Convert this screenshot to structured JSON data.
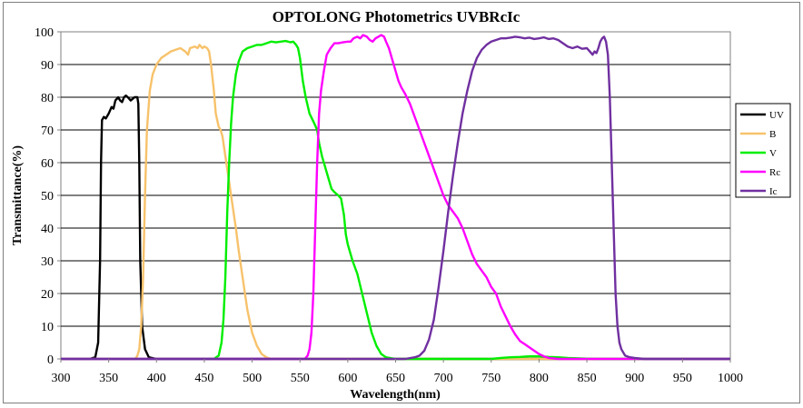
{
  "chart_data": {
    "type": "line",
    "title": "OPTOLONG Photometrics UVBRcIc",
    "xlabel": "Wavelength(nm)",
    "ylabel": "Transmittance(%)",
    "xlim": [
      300,
      1000
    ],
    "ylim": [
      0,
      100
    ],
    "xticks": [
      "300",
      "350",
      "400",
      "450",
      "500",
      "550",
      "600",
      "650",
      "700",
      "750",
      "800",
      "850",
      "900",
      "950",
      "1000"
    ],
    "yticks": [
      "0",
      "10",
      "20",
      "30",
      "40",
      "50",
      "60",
      "70",
      "80",
      "90",
      "100"
    ],
    "grid": "horizontal",
    "legend_position": "right",
    "series": [
      {
        "name": "UV",
        "color": "#000000",
        "points": [
          [
            300,
            0
          ],
          [
            330,
            0
          ],
          [
            336,
            0.5
          ],
          [
            339,
            5
          ],
          [
            341,
            30
          ],
          [
            342,
            60
          ],
          [
            343,
            73
          ],
          [
            345,
            74
          ],
          [
            347,
            73.5
          ],
          [
            350,
            75
          ],
          [
            353,
            77
          ],
          [
            355,
            76.5
          ],
          [
            357,
            79
          ],
          [
            360,
            80
          ],
          [
            362,
            79
          ],
          [
            364,
            78.5
          ],
          [
            366,
            80
          ],
          [
            368,
            80.5
          ],
          [
            370,
            80
          ],
          [
            373,
            79
          ],
          [
            375,
            79.5
          ],
          [
            377,
            80
          ],
          [
            380,
            80
          ],
          [
            381,
            78
          ],
          [
            382,
            60
          ],
          [
            383,
            30
          ],
          [
            385,
            10
          ],
          [
            388,
            3
          ],
          [
            392,
            0.5
          ],
          [
            400,
            0
          ],
          [
            1000,
            0
          ]
        ]
      },
      {
        "name": "B",
        "color": "#f7c26b",
        "points": [
          [
            300,
            0
          ],
          [
            378,
            0
          ],
          [
            380,
            1
          ],
          [
            382,
            3
          ],
          [
            384,
            10
          ],
          [
            386,
            25
          ],
          [
            388,
            50
          ],
          [
            390,
            70
          ],
          [
            393,
            82
          ],
          [
            396,
            87
          ],
          [
            400,
            90
          ],
          [
            405,
            92
          ],
          [
            410,
            93
          ],
          [
            415,
            94
          ],
          [
            420,
            94.5
          ],
          [
            425,
            95
          ],
          [
            430,
            94
          ],
          [
            433,
            93
          ],
          [
            435,
            95
          ],
          [
            440,
            95.5
          ],
          [
            443,
            95
          ],
          [
            445,
            96
          ],
          [
            448,
            95
          ],
          [
            450,
            95.5
          ],
          [
            453,
            95
          ],
          [
            455,
            94
          ],
          [
            457,
            90
          ],
          [
            460,
            82
          ],
          [
            462,
            75
          ],
          [
            465,
            71
          ],
          [
            467,
            70
          ],
          [
            469,
            68
          ],
          [
            470,
            66
          ],
          [
            472,
            62
          ],
          [
            474,
            58
          ],
          [
            476,
            54
          ],
          [
            478,
            50
          ],
          [
            480,
            46
          ],
          [
            483,
            40
          ],
          [
            486,
            33
          ],
          [
            490,
            25
          ],
          [
            495,
            15
          ],
          [
            500,
            8
          ],
          [
            505,
            4
          ],
          [
            510,
            1.5
          ],
          [
            515,
            0.5
          ],
          [
            520,
            0
          ],
          [
            1000,
            0
          ]
        ]
      },
      {
        "name": "V",
        "color": "#00ee00",
        "points": [
          [
            300,
            0
          ],
          [
            460,
            0
          ],
          [
            465,
            1
          ],
          [
            468,
            5
          ],
          [
            470,
            12
          ],
          [
            472,
            25
          ],
          [
            474,
            45
          ],
          [
            476,
            60
          ],
          [
            478,
            72
          ],
          [
            480,
            80
          ],
          [
            483,
            87
          ],
          [
            486,
            91
          ],
          [
            490,
            94
          ],
          [
            495,
            95
          ],
          [
            500,
            95.5
          ],
          [
            505,
            96
          ],
          [
            510,
            96
          ],
          [
            515,
            96.5
          ],
          [
            520,
            97
          ],
          [
            525,
            96.8
          ],
          [
            530,
            97
          ],
          [
            535,
            97.2
          ],
          [
            540,
            96.8
          ],
          [
            543,
            97
          ],
          [
            546,
            96
          ],
          [
            548,
            95
          ],
          [
            550,
            92
          ],
          [
            553,
            85
          ],
          [
            556,
            80
          ],
          [
            560,
            75
          ],
          [
            565,
            72
          ],
          [
            568,
            70
          ],
          [
            570,
            66
          ],
          [
            573,
            62
          ],
          [
            576,
            59
          ],
          [
            580,
            55
          ],
          [
            583,
            52
          ],
          [
            586,
            51
          ],
          [
            590,
            50
          ],
          [
            593,
            49
          ],
          [
            596,
            44
          ],
          [
            598,
            38
          ],
          [
            600,
            35
          ],
          [
            605,
            30
          ],
          [
            610,
            26
          ],
          [
            615,
            20
          ],
          [
            620,
            14
          ],
          [
            625,
            8
          ],
          [
            630,
            4
          ],
          [
            635,
            1.5
          ],
          [
            640,
            0.5
          ],
          [
            650,
            0
          ],
          [
            750,
            0
          ],
          [
            760,
            0.3
          ],
          [
            770,
            0.5
          ],
          [
            780,
            0.6
          ],
          [
            790,
            0.8
          ],
          [
            800,
            0.8
          ],
          [
            810,
            0.6
          ],
          [
            820,
            0.5
          ],
          [
            830,
            0.3
          ],
          [
            840,
            0.2
          ],
          [
            850,
            0.1
          ],
          [
            860,
            0
          ],
          [
            1000,
            0
          ]
        ]
      },
      {
        "name": "Rc",
        "color": "#ff00ff",
        "points": [
          [
            300,
            0
          ],
          [
            555,
            0
          ],
          [
            558,
            1
          ],
          [
            560,
            3
          ],
          [
            562,
            8
          ],
          [
            564,
            20
          ],
          [
            566,
            40
          ],
          [
            568,
            60
          ],
          [
            570,
            75
          ],
          [
            572,
            82
          ],
          [
            575,
            88
          ],
          [
            578,
            93
          ],
          [
            582,
            95
          ],
          [
            586,
            96.5
          ],
          [
            590,
            96.5
          ],
          [
            595,
            96.8
          ],
          [
            600,
            97
          ],
          [
            603,
            97
          ],
          [
            606,
            98
          ],
          [
            610,
            98.5
          ],
          [
            613,
            98
          ],
          [
            616,
            99
          ],
          [
            620,
            98.5
          ],
          [
            623,
            97.5
          ],
          [
            626,
            97
          ],
          [
            629,
            98
          ],
          [
            632,
            98.5
          ],
          [
            635,
            99
          ],
          [
            638,
            98.5
          ],
          [
            640,
            97
          ],
          [
            643,
            95
          ],
          [
            646,
            92
          ],
          [
            650,
            88
          ],
          [
            653,
            85
          ],
          [
            656,
            83
          ],
          [
            660,
            81
          ],
          [
            665,
            78
          ],
          [
            670,
            74
          ],
          [
            675,
            70
          ],
          [
            680,
            66
          ],
          [
            685,
            62
          ],
          [
            690,
            58
          ],
          [
            695,
            54
          ],
          [
            700,
            50
          ],
          [
            705,
            47
          ],
          [
            710,
            45
          ],
          [
            715,
            43
          ],
          [
            720,
            40
          ],
          [
            725,
            36
          ],
          [
            730,
            32
          ],
          [
            735,
            29
          ],
          [
            740,
            27
          ],
          [
            745,
            25
          ],
          [
            750,
            22
          ],
          [
            755,
            20
          ],
          [
            760,
            16
          ],
          [
            765,
            13
          ],
          [
            770,
            10
          ],
          [
            775,
            7.5
          ],
          [
            780,
            5.5
          ],
          [
            785,
            4.5
          ],
          [
            790,
            3.5
          ],
          [
            795,
            2.5
          ],
          [
            800,
            1.5
          ],
          [
            805,
            0.8
          ],
          [
            810,
            0.3
          ],
          [
            820,
            0
          ],
          [
            1000,
            0
          ]
        ]
      },
      {
        "name": "Ic",
        "color": "#7030a0",
        "points": [
          [
            300,
            0
          ],
          [
            660,
            0
          ],
          [
            670,
            0.5
          ],
          [
            675,
            1
          ],
          [
            680,
            2.5
          ],
          [
            685,
            6
          ],
          [
            690,
            12
          ],
          [
            695,
            22
          ],
          [
            700,
            33
          ],
          [
            705,
            45
          ],
          [
            710,
            56
          ],
          [
            715,
            66
          ],
          [
            720,
            75
          ],
          [
            725,
            82
          ],
          [
            730,
            88
          ],
          [
            735,
            92
          ],
          [
            740,
            94.5
          ],
          [
            745,
            96
          ],
          [
            750,
            97
          ],
          [
            755,
            97.5
          ],
          [
            760,
            98
          ],
          [
            765,
            98
          ],
          [
            770,
            98.2
          ],
          [
            775,
            98.5
          ],
          [
            780,
            98.3
          ],
          [
            785,
            98
          ],
          [
            790,
            98.2
          ],
          [
            795,
            97.8
          ],
          [
            800,
            98
          ],
          [
            805,
            98.3
          ],
          [
            810,
            97.8
          ],
          [
            815,
            98
          ],
          [
            820,
            97.5
          ],
          [
            825,
            96.5
          ],
          [
            830,
            95.5
          ],
          [
            835,
            95
          ],
          [
            840,
            95.5
          ],
          [
            845,
            94.8
          ],
          [
            850,
            95
          ],
          [
            853,
            94
          ],
          [
            856,
            93
          ],
          [
            858,
            94
          ],
          [
            860,
            93.5
          ],
          [
            862,
            95
          ],
          [
            864,
            97
          ],
          [
            866,
            98
          ],
          [
            868,
            98.5
          ],
          [
            870,
            97
          ],
          [
            872,
            93
          ],
          [
            874,
            80
          ],
          [
            876,
            60
          ],
          [
            878,
            40
          ],
          [
            880,
            20
          ],
          [
            882,
            10
          ],
          [
            884,
            5
          ],
          [
            886,
            3
          ],
          [
            888,
            2
          ],
          [
            890,
            1
          ],
          [
            895,
            0.5
          ],
          [
            900,
            0.3
          ],
          [
            910,
            0
          ],
          [
            1000,
            0
          ]
        ]
      }
    ]
  }
}
